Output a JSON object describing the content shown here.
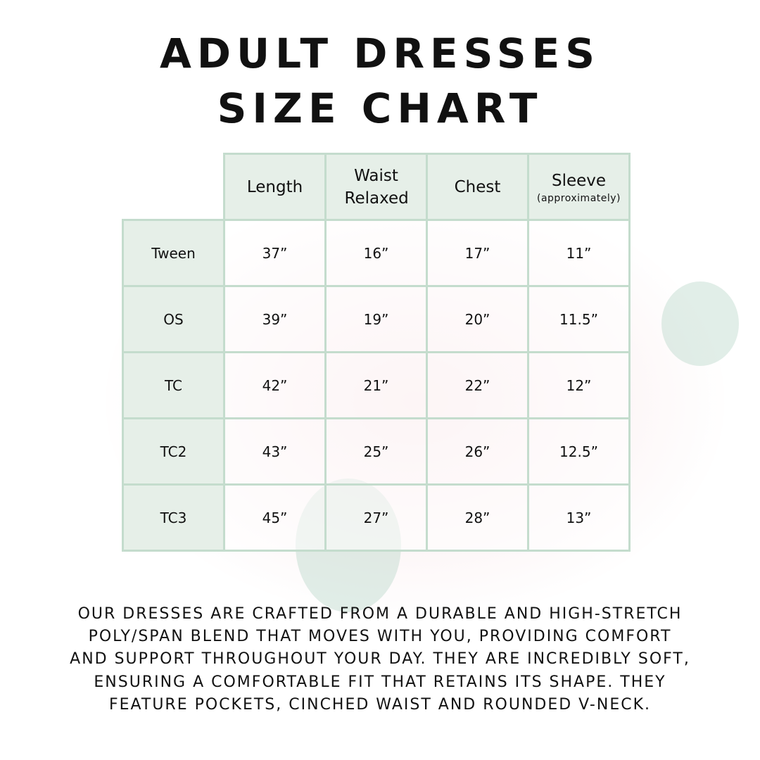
{
  "title": {
    "line1": "ADULT DRESSES",
    "line2": "SIZE CHART"
  },
  "table": {
    "columns": [
      "Length",
      "Waist Relaxed",
      "Chest",
      "Sleeve"
    ],
    "column_note": "(approximately)",
    "rows": [
      {
        "size": "Tween",
        "values": [
          "37”",
          "16”",
          "17”",
          "11”"
        ]
      },
      {
        "size": "OS",
        "values": [
          "39”",
          "19”",
          "20”",
          "11.5”"
        ]
      },
      {
        "size": "TC",
        "values": [
          "42”",
          "21”",
          "22”",
          "12”"
        ]
      },
      {
        "size": "TC2",
        "values": [
          "43”",
          "25”",
          "26”",
          "12.5”"
        ]
      },
      {
        "size": "TC3",
        "values": [
          "45”",
          "27”",
          "28”",
          "13”"
        ]
      }
    ]
  },
  "description": [
    "Our dresses are crafted from a durable and high-stretch",
    "poly/span blend that moves with you, providing comfort",
    "and support throughout your day. They are incredibly soft,",
    "ensuring a comfortable fit that retains its shape. They",
    "feature pockets, cinched waist and rounded V-neck."
  ],
  "colors": {
    "header_fill": "#e6efe8",
    "border": "#c4dccd",
    "text": "#111111"
  }
}
